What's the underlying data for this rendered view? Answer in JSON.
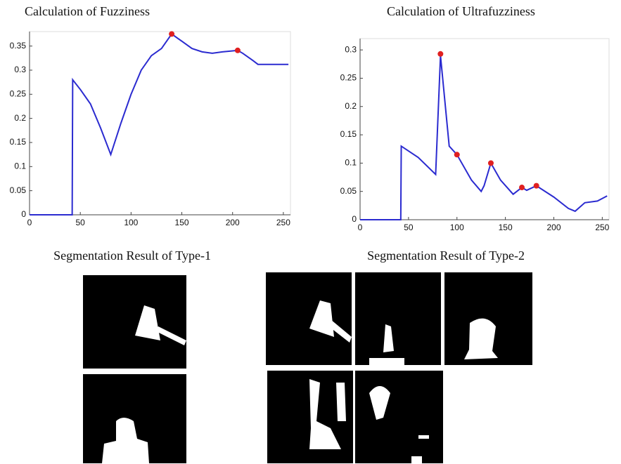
{
  "chart_data": [
    {
      "type": "line",
      "title": "Calculation of Fuzziness",
      "x": [
        0,
        42,
        42.5,
        50,
        60,
        70,
        80,
        90,
        100,
        110,
        120,
        130,
        140,
        150,
        160,
        170,
        180,
        190,
        200,
        205,
        210,
        220,
        225,
        240,
        255
      ],
      "series": [
        {
          "color": "#2b2bd0",
          "values": [
            0,
            0,
            0.28,
            0.26,
            0.23,
            0.18,
            0.125,
            0.19,
            0.25,
            0.3,
            0.33,
            0.345,
            0.375,
            0.36,
            0.345,
            0.338,
            0.335,
            0.338,
            0.34,
            0.341,
            0.335,
            0.32,
            0.312,
            0.312,
            0.312
          ]
        }
      ],
      "markers": {
        "color": "#e02020",
        "x": [
          140,
          205
        ],
        "values": [
          0.375,
          0.341
        ]
      },
      "xlim": [
        0,
        257
      ],
      "ylim": [
        0,
        0.38
      ],
      "xticks": [
        0,
        50,
        100,
        150,
        200,
        250
      ],
      "yticks": [
        0,
        0.05,
        0.1,
        0.15,
        0.2,
        0.25,
        0.3,
        0.35
      ]
    },
    {
      "type": "line",
      "title": "Calculation of Ultrafuzziness",
      "x": [
        0,
        42,
        42.5,
        60,
        78,
        83,
        92,
        100,
        115,
        125,
        128,
        135,
        145,
        158,
        167,
        172,
        182,
        200,
        215,
        222,
        232,
        245,
        255
      ],
      "series": [
        {
          "color": "#2b2bd0",
          "values": [
            0,
            0,
            0.13,
            0.11,
            0.08,
            0.29,
            0.13,
            0.115,
            0.07,
            0.05,
            0.06,
            0.1,
            0.07,
            0.045,
            0.057,
            0.052,
            0.06,
            0.04,
            0.02,
            0.015,
            0.03,
            0.033,
            0.042
          ]
        }
      ],
      "markers": {
        "color": "#e02020",
        "x": [
          83,
          100,
          135,
          167,
          182
        ],
        "values": [
          0.293,
          0.115,
          0.1,
          0.057,
          0.06
        ]
      },
      "xlim": [
        0,
        257
      ],
      "ylim": [
        0,
        0.32
      ],
      "xticks": [
        0,
        50,
        100,
        150,
        200,
        250
      ],
      "yticks": [
        0,
        0.05,
        0.1,
        0.15,
        0.2,
        0.25,
        0.3
      ]
    }
  ],
  "captions": [
    "Segmentation Result of Type-1",
    "Segmentation Result of Type-2"
  ]
}
